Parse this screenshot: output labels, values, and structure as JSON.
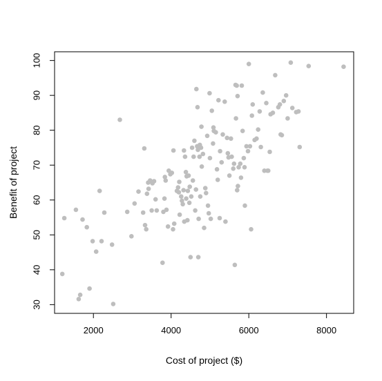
{
  "chart_data": {
    "type": "scatter",
    "title": "",
    "xlabel": "Cost of project ($)",
    "ylabel": "Benefit of project",
    "xlim": [
      1000,
      8700
    ],
    "ylim": [
      27.5,
      102.5
    ],
    "x_ticks": [
      2000,
      4000,
      6000,
      8000
    ],
    "y_ticks": [
      30,
      40,
      50,
      60,
      70,
      80,
      90,
      100
    ],
    "grid": false,
    "legend": "none",
    "point_color": "#bebebe",
    "series": [
      {
        "points": [
          [
            1200,
            38.8
          ],
          [
            1250,
            54.8
          ],
          [
            1550,
            57.2
          ],
          [
            1620,
            31.6
          ],
          [
            1660,
            32.8
          ],
          [
            1720,
            54.4
          ],
          [
            1830,
            52.2
          ],
          [
            1900,
            34.6
          ],
          [
            1980,
            48.2
          ],
          [
            2070,
            45.2
          ],
          [
            2160,
            62.6
          ],
          [
            2210,
            48.2
          ],
          [
            2280,
            56.4
          ],
          [
            2480,
            47.2
          ],
          [
            2510,
            30.2
          ],
          [
            2680,
            83.0
          ],
          [
            2870,
            56.6
          ],
          [
            2980,
            49.6
          ],
          [
            3060,
            59.0
          ],
          [
            3160,
            62.4
          ],
          [
            3280,
            56.4
          ],
          [
            3310,
            74.8
          ],
          [
            3330,
            52.8
          ],
          [
            3360,
            51.6
          ],
          [
            3380,
            61.8
          ],
          [
            3420,
            63.2
          ],
          [
            3410,
            65.0
          ],
          [
            3460,
            65.6
          ],
          [
            3500,
            57.0
          ],
          [
            3520,
            64.8
          ],
          [
            3560,
            65.4
          ],
          [
            3600,
            60.2
          ],
          [
            3630,
            57.0
          ],
          [
            3780,
            42.0
          ],
          [
            3800,
            56.6
          ],
          [
            3830,
            60.4
          ],
          [
            3840,
            66.6
          ],
          [
            3860,
            65.6
          ],
          [
            3880,
            57.2
          ],
          [
            3920,
            52.4
          ],
          [
            3940,
            68.4
          ],
          [
            3980,
            67.4
          ],
          [
            4020,
            67.8
          ],
          [
            4060,
            74.2
          ],
          [
            4050,
            51.6
          ],
          [
            4080,
            53.2
          ],
          [
            4150,
            62.6
          ],
          [
            4180,
            63.6
          ],
          [
            4200,
            62.2
          ],
          [
            4210,
            65.2
          ],
          [
            4220,
            55.8
          ],
          [
            4260,
            61.0
          ],
          [
            4280,
            59.8
          ],
          [
            4300,
            58.8
          ],
          [
            4320,
            62.8
          ],
          [
            4330,
            74.2
          ],
          [
            4340,
            53.8
          ],
          [
            4360,
            72.4
          ],
          [
            4380,
            68.0
          ],
          [
            4390,
            60.4
          ],
          [
            4400,
            66.8
          ],
          [
            4420,
            54.2
          ],
          [
            4430,
            62.6
          ],
          [
            4450,
            67.0
          ],
          [
            4470,
            59.2
          ],
          [
            4480,
            63.8
          ],
          [
            4500,
            43.6
          ],
          [
            4520,
            61.0
          ],
          [
            4540,
            75.0
          ],
          [
            4560,
            65.6
          ],
          [
            4580,
            72.4
          ],
          [
            4600,
            77.0
          ],
          [
            4620,
            57.0
          ],
          [
            4640,
            63.0
          ],
          [
            4650,
            91.8
          ],
          [
            4670,
            75.4
          ],
          [
            4680,
            86.6
          ],
          [
            4690,
            74.4
          ],
          [
            4700,
            43.6
          ],
          [
            4710,
            54.6
          ],
          [
            4730,
            72.4
          ],
          [
            4740,
            75.8
          ],
          [
            4750,
            61.0
          ],
          [
            4770,
            75.0
          ],
          [
            4780,
            81.0
          ],
          [
            4790,
            69.6
          ],
          [
            4820,
            73.2
          ],
          [
            4850,
            52.0
          ],
          [
            4880,
            63.4
          ],
          [
            4900,
            62.0
          ],
          [
            4930,
            78.4
          ],
          [
            4950,
            58.4
          ],
          [
            4970,
            56.2
          ],
          [
            4990,
            90.6
          ],
          [
            5000,
            72.0
          ],
          [
            5020,
            54.6
          ],
          [
            5050,
            85.6
          ],
          [
            5080,
            76.2
          ],
          [
            5090,
            80.8
          ],
          [
            5100,
            79.8
          ],
          [
            5150,
            79.4
          ],
          [
            5180,
            68.8
          ],
          [
            5200,
            65.8
          ],
          [
            5220,
            88.6
          ],
          [
            5250,
            54.8
          ],
          [
            5260,
            74.0
          ],
          [
            5300,
            70.8
          ],
          [
            5330,
            78.8
          ],
          [
            5380,
            88.2
          ],
          [
            5400,
            53.8
          ],
          [
            5440,
            77.8
          ],
          [
            5460,
            73.4
          ],
          [
            5480,
            72.2
          ],
          [
            5500,
            67.0
          ],
          [
            5540,
            77.6
          ],
          [
            5560,
            72.4
          ],
          [
            5600,
            69.0
          ],
          [
            5620,
            70.4
          ],
          [
            5640,
            41.4
          ],
          [
            5660,
            93.0
          ],
          [
            5670,
            83.4
          ],
          [
            5690,
            92.8
          ],
          [
            5700,
            62.8
          ],
          [
            5710,
            89.8
          ],
          [
            5720,
            64.0
          ],
          [
            5740,
            69.4
          ],
          [
            5780,
            70.4
          ],
          [
            5800,
            66.4
          ],
          [
            5820,
            92.8
          ],
          [
            5840,
            79.8
          ],
          [
            5870,
            72.0
          ],
          [
            5890,
            69.4
          ],
          [
            5900,
            58.4
          ],
          [
            5940,
            75.4
          ],
          [
            5980,
            74.0
          ],
          [
            6000,
            99.0
          ],
          [
            6030,
            75.4
          ],
          [
            6060,
            51.6
          ],
          [
            6080,
            84.2
          ],
          [
            6100,
            87.4
          ],
          [
            6150,
            77.2
          ],
          [
            6200,
            77.6
          ],
          [
            6240,
            80.2
          ],
          [
            6280,
            85.4
          ],
          [
            6310,
            75.2
          ],
          [
            6360,
            90.8
          ],
          [
            6400,
            68.4
          ],
          [
            6450,
            87.8
          ],
          [
            6480,
            68.4
          ],
          [
            6500,
            68.4
          ],
          [
            6540,
            73.8
          ],
          [
            6560,
            84.6
          ],
          [
            6620,
            85.0
          ],
          [
            6680,
            95.8
          ],
          [
            6760,
            86.6
          ],
          [
            6800,
            87.4
          ],
          [
            6820,
            78.8
          ],
          [
            6850,
            78.6
          ],
          [
            6900,
            88.4
          ],
          [
            6960,
            90.0
          ],
          [
            7000,
            83.4
          ],
          [
            7080,
            99.4
          ],
          [
            7120,
            86.4
          ],
          [
            7220,
            85.2
          ],
          [
            7280,
            85.4
          ],
          [
            7310,
            75.2
          ],
          [
            7540,
            98.4
          ],
          [
            8440,
            98.2
          ]
        ]
      }
    ]
  }
}
